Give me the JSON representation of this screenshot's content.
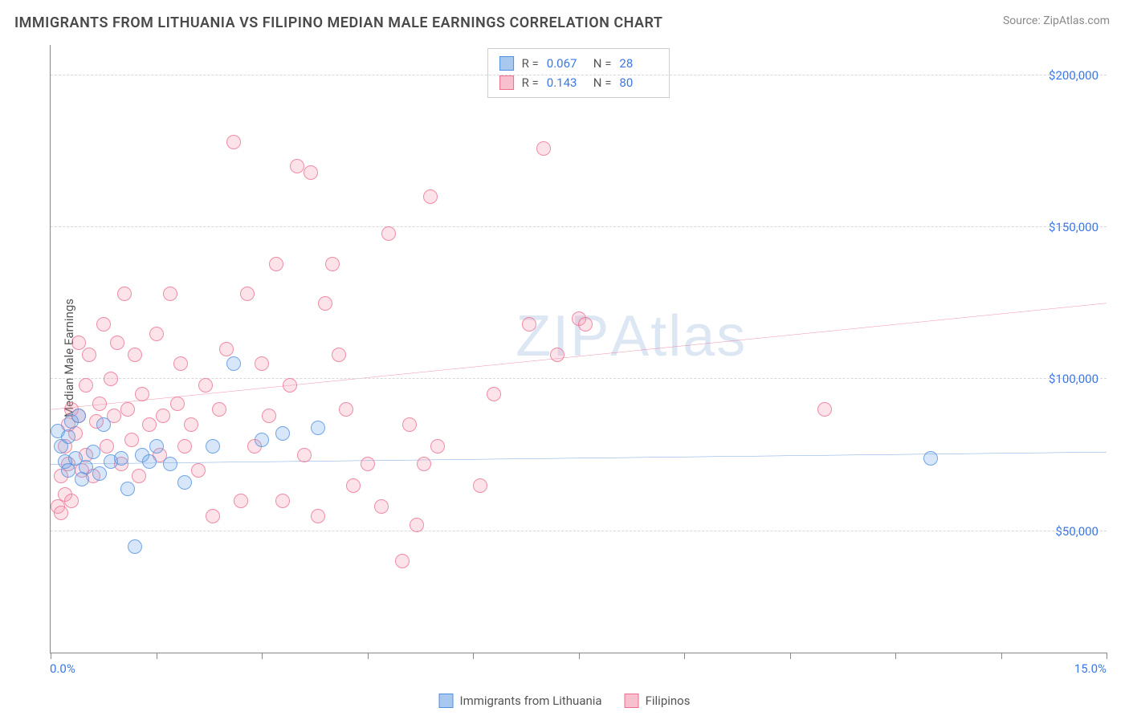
{
  "title": "IMMIGRANTS FROM LITHUANIA VS FILIPINO MEDIAN MALE EARNINGS CORRELATION CHART",
  "source_label": "Source: ",
  "source_value": "ZipAtlas.com",
  "watermark": "ZIPAtlas",
  "chart": {
    "type": "scatter",
    "ylabel": "Median Male Earnings",
    "xlim": [
      0,
      15
    ],
    "ylim": [
      10000,
      210000
    ],
    "xtick_labels": {
      "start": "0.0%",
      "end": "15.0%"
    },
    "xtick_positions_pct": [
      0,
      10,
      20,
      30,
      40,
      50,
      60,
      70,
      80,
      90,
      100
    ],
    "ytick_values": [
      50000,
      100000,
      150000,
      200000
    ],
    "ytick_labels": [
      "$50,000",
      "$100,000",
      "$150,000",
      "$200,000"
    ],
    "background_color": "#ffffff",
    "grid_color": "#d8d8d8",
    "axis_color": "#888888",
    "marker_radius": 9,
    "marker_opacity_fill": 0.28,
    "marker_opacity_stroke": 0.75,
    "series": [
      {
        "name": "Immigrants from Lithuania",
        "color_fill": "#6fa8e8",
        "color_stroke": "#4f8fde",
        "R": "0.067",
        "N": "28",
        "trend": {
          "y_at_xmin": 72000,
          "y_at_xmax": 76000,
          "color": "#2e72d2",
          "width": 2.5
        },
        "points": [
          [
            0.1,
            83000
          ],
          [
            0.15,
            78000
          ],
          [
            0.2,
            73000
          ],
          [
            0.25,
            70000
          ],
          [
            0.25,
            81000
          ],
          [
            0.3,
            86000
          ],
          [
            0.35,
            74000
          ],
          [
            0.4,
            88000
          ],
          [
            0.45,
            67000
          ],
          [
            0.5,
            71000
          ],
          [
            0.6,
            76000
          ],
          [
            0.7,
            69000
          ],
          [
            0.75,
            85000
          ],
          [
            0.85,
            73000
          ],
          [
            1.0,
            74000
          ],
          [
            1.1,
            64000
          ],
          [
            1.2,
            45000
          ],
          [
            1.3,
            75000
          ],
          [
            1.4,
            73000
          ],
          [
            1.5,
            78000
          ],
          [
            1.7,
            72000
          ],
          [
            1.9,
            66000
          ],
          [
            2.3,
            78000
          ],
          [
            2.6,
            105000
          ],
          [
            3.0,
            80000
          ],
          [
            3.3,
            82000
          ],
          [
            3.8,
            84000
          ],
          [
            12.5,
            74000
          ]
        ]
      },
      {
        "name": "Filipinos",
        "color_fill": "#f49bb0",
        "color_stroke": "#ec6f8e",
        "R": "0.143",
        "N": "80",
        "trend": {
          "y_at_xmin": 90000,
          "y_at_xmax": 125000,
          "color": "#e8567f",
          "width": 2.5
        },
        "points": [
          [
            0.1,
            58000
          ],
          [
            0.15,
            56000
          ],
          [
            0.15,
            68000
          ],
          [
            0.2,
            62000
          ],
          [
            0.2,
            78000
          ],
          [
            0.25,
            72000
          ],
          [
            0.25,
            85000
          ],
          [
            0.3,
            60000
          ],
          [
            0.3,
            90000
          ],
          [
            0.35,
            82000
          ],
          [
            0.4,
            88000
          ],
          [
            0.4,
            112000
          ],
          [
            0.45,
            70000
          ],
          [
            0.5,
            98000
          ],
          [
            0.5,
            75000
          ],
          [
            0.55,
            108000
          ],
          [
            0.6,
            68000
          ],
          [
            0.65,
            86000
          ],
          [
            0.7,
            92000
          ],
          [
            0.75,
            118000
          ],
          [
            0.8,
            78000
          ],
          [
            0.85,
            100000
          ],
          [
            0.9,
            88000
          ],
          [
            0.95,
            112000
          ],
          [
            1.0,
            72000
          ],
          [
            1.05,
            128000
          ],
          [
            1.1,
            90000
          ],
          [
            1.15,
            80000
          ],
          [
            1.2,
            108000
          ],
          [
            1.25,
            68000
          ],
          [
            1.3,
            95000
          ],
          [
            1.4,
            85000
          ],
          [
            1.5,
            115000
          ],
          [
            1.55,
            75000
          ],
          [
            1.6,
            88000
          ],
          [
            1.7,
            128000
          ],
          [
            1.8,
            92000
          ],
          [
            1.85,
            105000
          ],
          [
            1.9,
            78000
          ],
          [
            2.0,
            85000
          ],
          [
            2.1,
            70000
          ],
          [
            2.2,
            98000
          ],
          [
            2.3,
            55000
          ],
          [
            2.4,
            90000
          ],
          [
            2.5,
            110000
          ],
          [
            2.6,
            178000
          ],
          [
            2.7,
            60000
          ],
          [
            2.8,
            128000
          ],
          [
            2.9,
            78000
          ],
          [
            3.0,
            105000
          ],
          [
            3.1,
            88000
          ],
          [
            3.2,
            138000
          ],
          [
            3.3,
            60000
          ],
          [
            3.4,
            98000
          ],
          [
            3.5,
            170000
          ],
          [
            3.6,
            75000
          ],
          [
            3.7,
            168000
          ],
          [
            3.8,
            55000
          ],
          [
            3.9,
            125000
          ],
          [
            4.0,
            138000
          ],
          [
            4.1,
            108000
          ],
          [
            4.2,
            90000
          ],
          [
            4.3,
            65000
          ],
          [
            4.5,
            72000
          ],
          [
            4.7,
            58000
          ],
          [
            4.8,
            148000
          ],
          [
            5.0,
            40000
          ],
          [
            5.1,
            85000
          ],
          [
            5.3,
            72000
          ],
          [
            5.4,
            160000
          ],
          [
            5.2,
            52000
          ],
          [
            5.5,
            78000
          ],
          [
            6.1,
            65000
          ],
          [
            6.3,
            95000
          ],
          [
            6.8,
            118000
          ],
          [
            7.0,
            176000
          ],
          [
            7.2,
            108000
          ],
          [
            7.5,
            120000
          ],
          [
            7.6,
            118000
          ],
          [
            11.0,
            90000
          ]
        ]
      }
    ]
  },
  "legend": {
    "items": [
      {
        "label": "Immigrants from Lithuania",
        "fill": "#a8c8f0",
        "stroke": "#4f8fde"
      },
      {
        "label": "Filipinos",
        "fill": "#f8c0ce",
        "stroke": "#ec6f8e"
      }
    ]
  },
  "stats_box": {
    "r_label": "R =",
    "n_label": "N ="
  }
}
